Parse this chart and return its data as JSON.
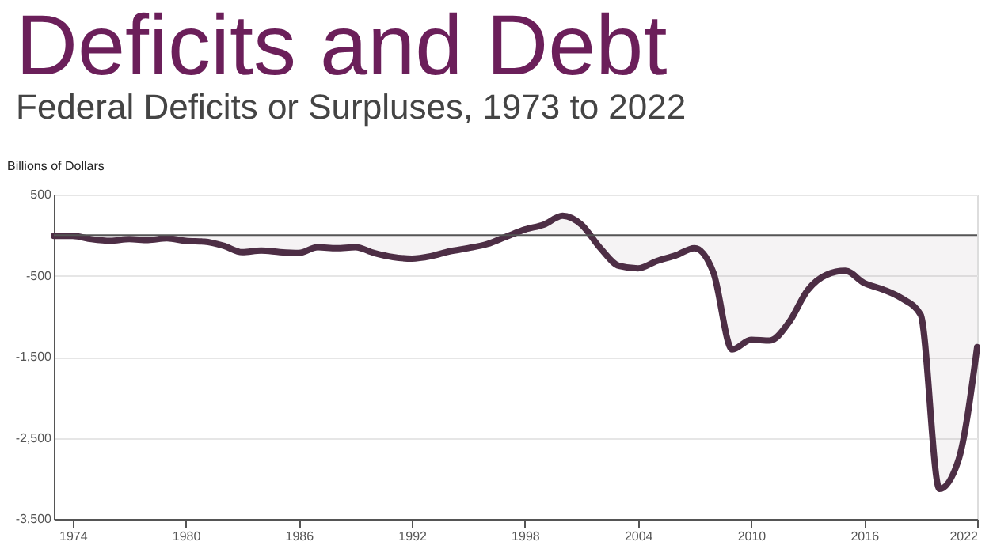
{
  "chart_data": {
    "type": "area",
    "title": "Deficits and Debt",
    "subtitle": "Federal Deficits or Surpluses, 1973 to 2022",
    "ylabel": "Billions of Dollars",
    "x": [
      1973,
      1974,
      1975,
      1976,
      1977,
      1978,
      1979,
      1980,
      1981,
      1982,
      1983,
      1984,
      1985,
      1986,
      1987,
      1988,
      1989,
      1990,
      1991,
      1992,
      1993,
      1994,
      1995,
      1996,
      1997,
      1998,
      1999,
      2000,
      2001,
      2002,
      2003,
      2004,
      2005,
      2006,
      2007,
      2008,
      2009,
      2010,
      2011,
      2012,
      2013,
      2014,
      2015,
      2016,
      2017,
      2018,
      2019,
      2020,
      2021,
      2022
    ],
    "series": [
      {
        "color": "#4d2e45",
        "values": [
          -10,
          -10,
          -50,
          -70,
          -50,
          -60,
          -40,
          -70,
          -80,
          -130,
          -210,
          -190,
          -210,
          -220,
          -150,
          -160,
          -150,
          -220,
          -270,
          -290,
          -260,
          -200,
          -160,
          -110,
          -20,
          70,
          130,
          240,
          130,
          -160,
          -380,
          -410,
          -320,
          -250,
          -160,
          -460,
          -1410,
          -1290,
          -1300,
          -1080,
          -680,
          -490,
          -440,
          -590,
          -670,
          -780,
          -980,
          -3130,
          -2780,
          -1380
        ]
      }
    ],
    "xlim": [
      1973,
      2022
    ],
    "xticks": [
      1974,
      1980,
      1986,
      1992,
      1998,
      2004,
      2010,
      2016,
      2022
    ],
    "ylim": [
      -3500,
      500
    ],
    "yticks": [
      {
        "value": 500,
        "label": "500"
      },
      {
        "value": -500,
        "label": "-500"
      },
      {
        "value": -1500,
        "label": "-1,500"
      },
      {
        "value": -2500,
        "label": "-2,500"
      },
      {
        "value": -3500,
        "label": "-3,500"
      }
    ],
    "ref_lines": [
      {
        "axis": "y",
        "value": 0,
        "color": "#555555"
      }
    ],
    "grid": "y"
  }
}
